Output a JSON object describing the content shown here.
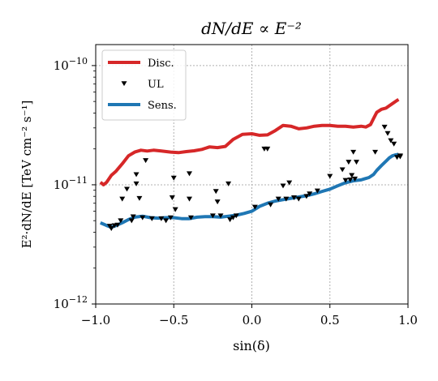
{
  "chart_data": {
    "type": "line",
    "title": "dN/dE ∝ E⁻²",
    "xlabel": "sin(δ)",
    "ylabel": "E²·dN/dE  [TeV cm⁻² s⁻¹]",
    "xlim": [
      -1.0,
      1.0
    ],
    "ylim": [
      1e-12,
      1.5e-10
    ],
    "yscale": "log",
    "grid": true,
    "legend_position": "top-left",
    "x_ticks": [
      {
        "value": -1.0,
        "label": "−1.0"
      },
      {
        "value": -0.5,
        "label": "−0.5"
      },
      {
        "value": 0.0,
        "label": "0.0"
      },
      {
        "value": 0.5,
        "label": "0.5"
      },
      {
        "value": 1.0,
        "label": "1.0"
      }
    ],
    "y_ticks": [
      {
        "value": 1e-12,
        "base": "10",
        "exp": "−12"
      },
      {
        "value": 1e-11,
        "base": "10",
        "exp": "−11"
      },
      {
        "value": 1e-10,
        "base": "10",
        "exp": "−10"
      }
    ],
    "series": [
      {
        "name": "Disc.",
        "kind": "line",
        "color": "#d62728",
        "x": [
          -0.97,
          -0.95,
          -0.93,
          -0.9,
          -0.87,
          -0.83,
          -0.79,
          -0.75,
          -0.71,
          -0.67,
          -0.63,
          -0.58,
          -0.52,
          -0.47,
          -0.42,
          -0.37,
          -0.32,
          -0.27,
          -0.22,
          -0.17,
          -0.12,
          -0.06,
          0.0,
          0.05,
          0.1,
          0.15,
          0.2,
          0.25,
          0.3,
          0.35,
          0.4,
          0.45,
          0.5,
          0.55,
          0.6,
          0.65,
          0.7,
          0.73,
          0.76,
          0.78,
          0.8,
          0.83,
          0.86,
          0.88,
          0.9,
          0.93,
          0.94
        ],
        "y": [
          1.05e-11,
          1e-11,
          1.05e-11,
          1.2e-11,
          1.3e-11,
          1.5e-11,
          1.75e-11,
          1.88e-11,
          1.95e-11,
          1.92e-11,
          1.95e-11,
          1.92e-11,
          1.88e-11,
          1.86e-11,
          1.9e-11,
          1.93e-11,
          1.98e-11,
          2.08e-11,
          2.05e-11,
          2.1e-11,
          2.4e-11,
          2.65e-11,
          2.68e-11,
          2.6e-11,
          2.62e-11,
          2.85e-11,
          3.15e-11,
          3.1e-11,
          2.95e-11,
          3e-11,
          3.1e-11,
          3.15e-11,
          3.15e-11,
          3.1e-11,
          3.1e-11,
          3.05e-11,
          3.1e-11,
          3.05e-11,
          3.2e-11,
          3.6e-11,
          4.05e-11,
          4.3e-11,
          4.4e-11,
          4.6e-11,
          4.8e-11,
          5.1e-11,
          5.2e-11
        ]
      },
      {
        "name": "Sens.",
        "kind": "line",
        "color": "#1f77b4",
        "x": [
          -0.97,
          -0.93,
          -0.9,
          -0.87,
          -0.83,
          -0.79,
          -0.75,
          -0.7,
          -0.65,
          -0.6,
          -0.55,
          -0.5,
          -0.45,
          -0.4,
          -0.35,
          -0.3,
          -0.25,
          -0.2,
          -0.15,
          -0.1,
          -0.05,
          0.0,
          0.05,
          0.1,
          0.15,
          0.2,
          0.25,
          0.3,
          0.35,
          0.4,
          0.45,
          0.5,
          0.55,
          0.6,
          0.65,
          0.7,
          0.72,
          0.75,
          0.78,
          0.8,
          0.83,
          0.86,
          0.88,
          0.9,
          0.92,
          0.94
        ],
        "y": [
          4.8e-12,
          4.55e-12,
          4.4e-12,
          4.55e-12,
          4.8e-12,
          5.1e-12,
          5.35e-12,
          5.45e-12,
          5.3e-12,
          5.25e-12,
          5.3e-12,
          5.3e-12,
          5.2e-12,
          5.2e-12,
          5.35e-12,
          5.4e-12,
          5.4e-12,
          5.35e-12,
          5.45e-12,
          5.55e-12,
          5.75e-12,
          6e-12,
          6.6e-12,
          7e-12,
          7.3e-12,
          7.5e-12,
          7.7e-12,
          7.9e-12,
          8.1e-12,
          8.4e-12,
          8.8e-12,
          9.2e-12,
          9.8e-12,
          1.04e-11,
          1.08e-11,
          1.1e-11,
          1.12e-11,
          1.15e-11,
          1.22e-11,
          1.32e-11,
          1.45e-11,
          1.58e-11,
          1.68e-11,
          1.75e-11,
          1.78e-11,
          1.8e-11
        ]
      },
      {
        "name": "UL",
        "kind": "marker",
        "marker": "triangle-down",
        "color": "#000000",
        "x": [
          -0.91,
          -0.9,
          -0.88,
          -0.86,
          -0.84,
          -0.83,
          -0.8,
          -0.77,
          -0.76,
          -0.74,
          -0.74,
          -0.72,
          -0.7,
          -0.68,
          -0.64,
          -0.58,
          -0.55,
          -0.52,
          -0.51,
          -0.5,
          -0.49,
          -0.4,
          -0.4,
          -0.39,
          -0.25,
          -0.23,
          -0.22,
          -0.2,
          -0.15,
          -0.14,
          -0.12,
          -0.1,
          0.02,
          0.08,
          0.1,
          0.12,
          0.17,
          0.2,
          0.22,
          0.24,
          0.27,
          0.3,
          0.35,
          0.37,
          0.42,
          0.5,
          0.58,
          0.6,
          0.62,
          0.63,
          0.64,
          0.65,
          0.66,
          0.67,
          0.79,
          0.85,
          0.87,
          0.89,
          0.91,
          0.93,
          0.95,
          0.95
        ],
        "y": [
          4.5e-12,
          4.3e-12,
          4.55e-12,
          4.6e-12,
          5e-12,
          7.6e-12,
          9.2e-12,
          5e-12,
          5.4e-12,
          1.22e-11,
          1.02e-11,
          7.7e-12,
          5.3e-12,
          1.6e-11,
          5.2e-12,
          5.2e-12,
          5e-12,
          5.3e-12,
          7.8e-12,
          1.14e-11,
          6.2e-12,
          7.6e-12,
          1.24e-11,
          5.3e-12,
          5.5e-12,
          8.8e-12,
          7.2e-12,
          5.5e-12,
          1.02e-11,
          5.1e-12,
          5.3e-12,
          5.5e-12,
          6.5e-12,
          2e-11,
          2e-11,
          6.8e-12,
          7.6e-12,
          9.8e-12,
          7.6e-12,
          1.04e-11,
          7.8e-12,
          7.6e-12,
          8e-12,
          8.4e-12,
          8.9e-12,
          1.18e-11,
          1.34e-11,
          1.09e-11,
          1.55e-11,
          1.1e-11,
          1.2e-11,
          1.88e-11,
          1.12e-11,
          1.55e-11,
          1.88e-11,
          3.05e-11,
          2.7e-11,
          2.35e-11,
          2.2e-11,
          1.7e-11,
          1.75e-11,
          1.72e-11
        ]
      }
    ],
    "legend": [
      {
        "name": "Disc.",
        "kind": "line",
        "color": "#d62728"
      },
      {
        "name": "UL",
        "kind": "marker",
        "color": "#000000"
      },
      {
        "name": "Sens.",
        "kind": "line",
        "color": "#1f77b4"
      }
    ]
  }
}
